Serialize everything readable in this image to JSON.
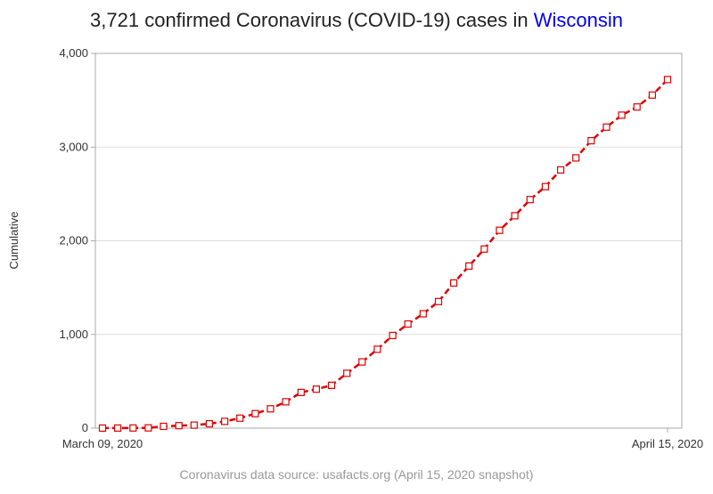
{
  "chart_data": {
    "type": "line",
    "title_prefix": "3,721 confirmed Coronavirus (COVID-19) cases in ",
    "title_state": "Wisconsin",
    "ylabel": "Cumulative",
    "xlabel": "",
    "x_tick_labels": [
      "March 09, 2020",
      "April 15, 2020"
    ],
    "ylim": [
      0,
      4000
    ],
    "y_ticks": [
      0,
      1000,
      2000,
      3000,
      4000
    ],
    "y_tick_labels": [
      "0",
      "1,000",
      "2,000",
      "3,000",
      "4,000"
    ],
    "grid_horizontal": true,
    "source_note": "Coronavirus data source: usafacts.org (April 15, 2020 snapshot)",
    "colors": {
      "series": "#dd0000",
      "title_accent": "#0000ee",
      "grid": "#dddddd",
      "frame": "#aaaaaa",
      "footnote": "#999999"
    },
    "series": [
      {
        "x": [
          "2020-03-09",
          "2020-03-10",
          "2020-03-11",
          "2020-03-12",
          "2020-03-13",
          "2020-03-14",
          "2020-03-15",
          "2020-03-16",
          "2020-03-17",
          "2020-03-18",
          "2020-03-19",
          "2020-03-20",
          "2020-03-21",
          "2020-03-22",
          "2020-03-23",
          "2020-03-24",
          "2020-03-25",
          "2020-03-26",
          "2020-03-27",
          "2020-03-28",
          "2020-03-29",
          "2020-03-30",
          "2020-03-31",
          "2020-04-01",
          "2020-04-02",
          "2020-04-03",
          "2020-04-04",
          "2020-04-05",
          "2020-04-06",
          "2020-04-07",
          "2020-04-08",
          "2020-04-09",
          "2020-04-10",
          "2020-04-11",
          "2020-04-12",
          "2020-04-13",
          "2020-04-14",
          "2020-04-15"
        ],
        "values": [
          1,
          1,
          2,
          3,
          19,
          27,
          32,
          47,
          72,
          106,
          155,
          206,
          281,
          381,
          416,
          457,
          585,
          707,
          842,
          989,
          1112,
          1221,
          1351,
          1550,
          1730,
          1912,
          2112,
          2267,
          2440,
          2578,
          2756,
          2885,
          3068,
          3213,
          3341,
          3428,
          3555,
          3721
        ]
      }
    ]
  }
}
